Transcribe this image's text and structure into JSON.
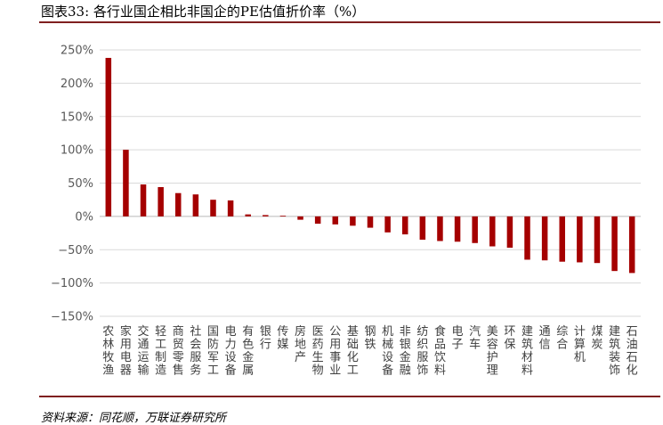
{
  "figure": {
    "title": "图表33:  各行业国企相比非国企的PE估值折价率（%）",
    "source": "资料来源：同花顺，万联证券研究所"
  },
  "chart_data": {
    "type": "bar",
    "title": "",
    "xlabel": "",
    "ylabel": "",
    "ylim": [
      -150,
      250
    ],
    "yticks": [
      -150,
      -100,
      -50,
      0,
      50,
      100,
      150,
      200,
      250
    ],
    "ytick_labels": [
      "−150%",
      "−100%",
      "−50%",
      "0%",
      "50%",
      "100%",
      "150%",
      "200%",
      "250%"
    ],
    "grid": true,
    "legend": "none",
    "bar_color": "#a50000",
    "categories": [
      "农林牧渔",
      "家用电器",
      "交通运输",
      "轻工制造",
      "商贸零售",
      "社会服务",
      "国防军工",
      "电力设备",
      "有色金属",
      "银行",
      "传媒",
      "房地产",
      "医药生物",
      "公用事业",
      "基础化工",
      "钢铁",
      "机械设备",
      "非银金融",
      "纺织服饰",
      "食品饮料",
      "电子",
      "汽车",
      "美容护理",
      "环保",
      "建筑材料",
      "通信",
      "综合",
      "计算机",
      "煤炭",
      "建筑装饰",
      "石油石化"
    ],
    "values": [
      238,
      100,
      48,
      44,
      35,
      33,
      25,
      24,
      3,
      2,
      1,
      -5,
      -11,
      -12,
      -14,
      -17,
      -24,
      -27,
      -35,
      -37,
      -38,
      -40,
      -45,
      -47,
      -65,
      -66,
      -68,
      -69,
      -70,
      -82,
      -85
    ]
  }
}
